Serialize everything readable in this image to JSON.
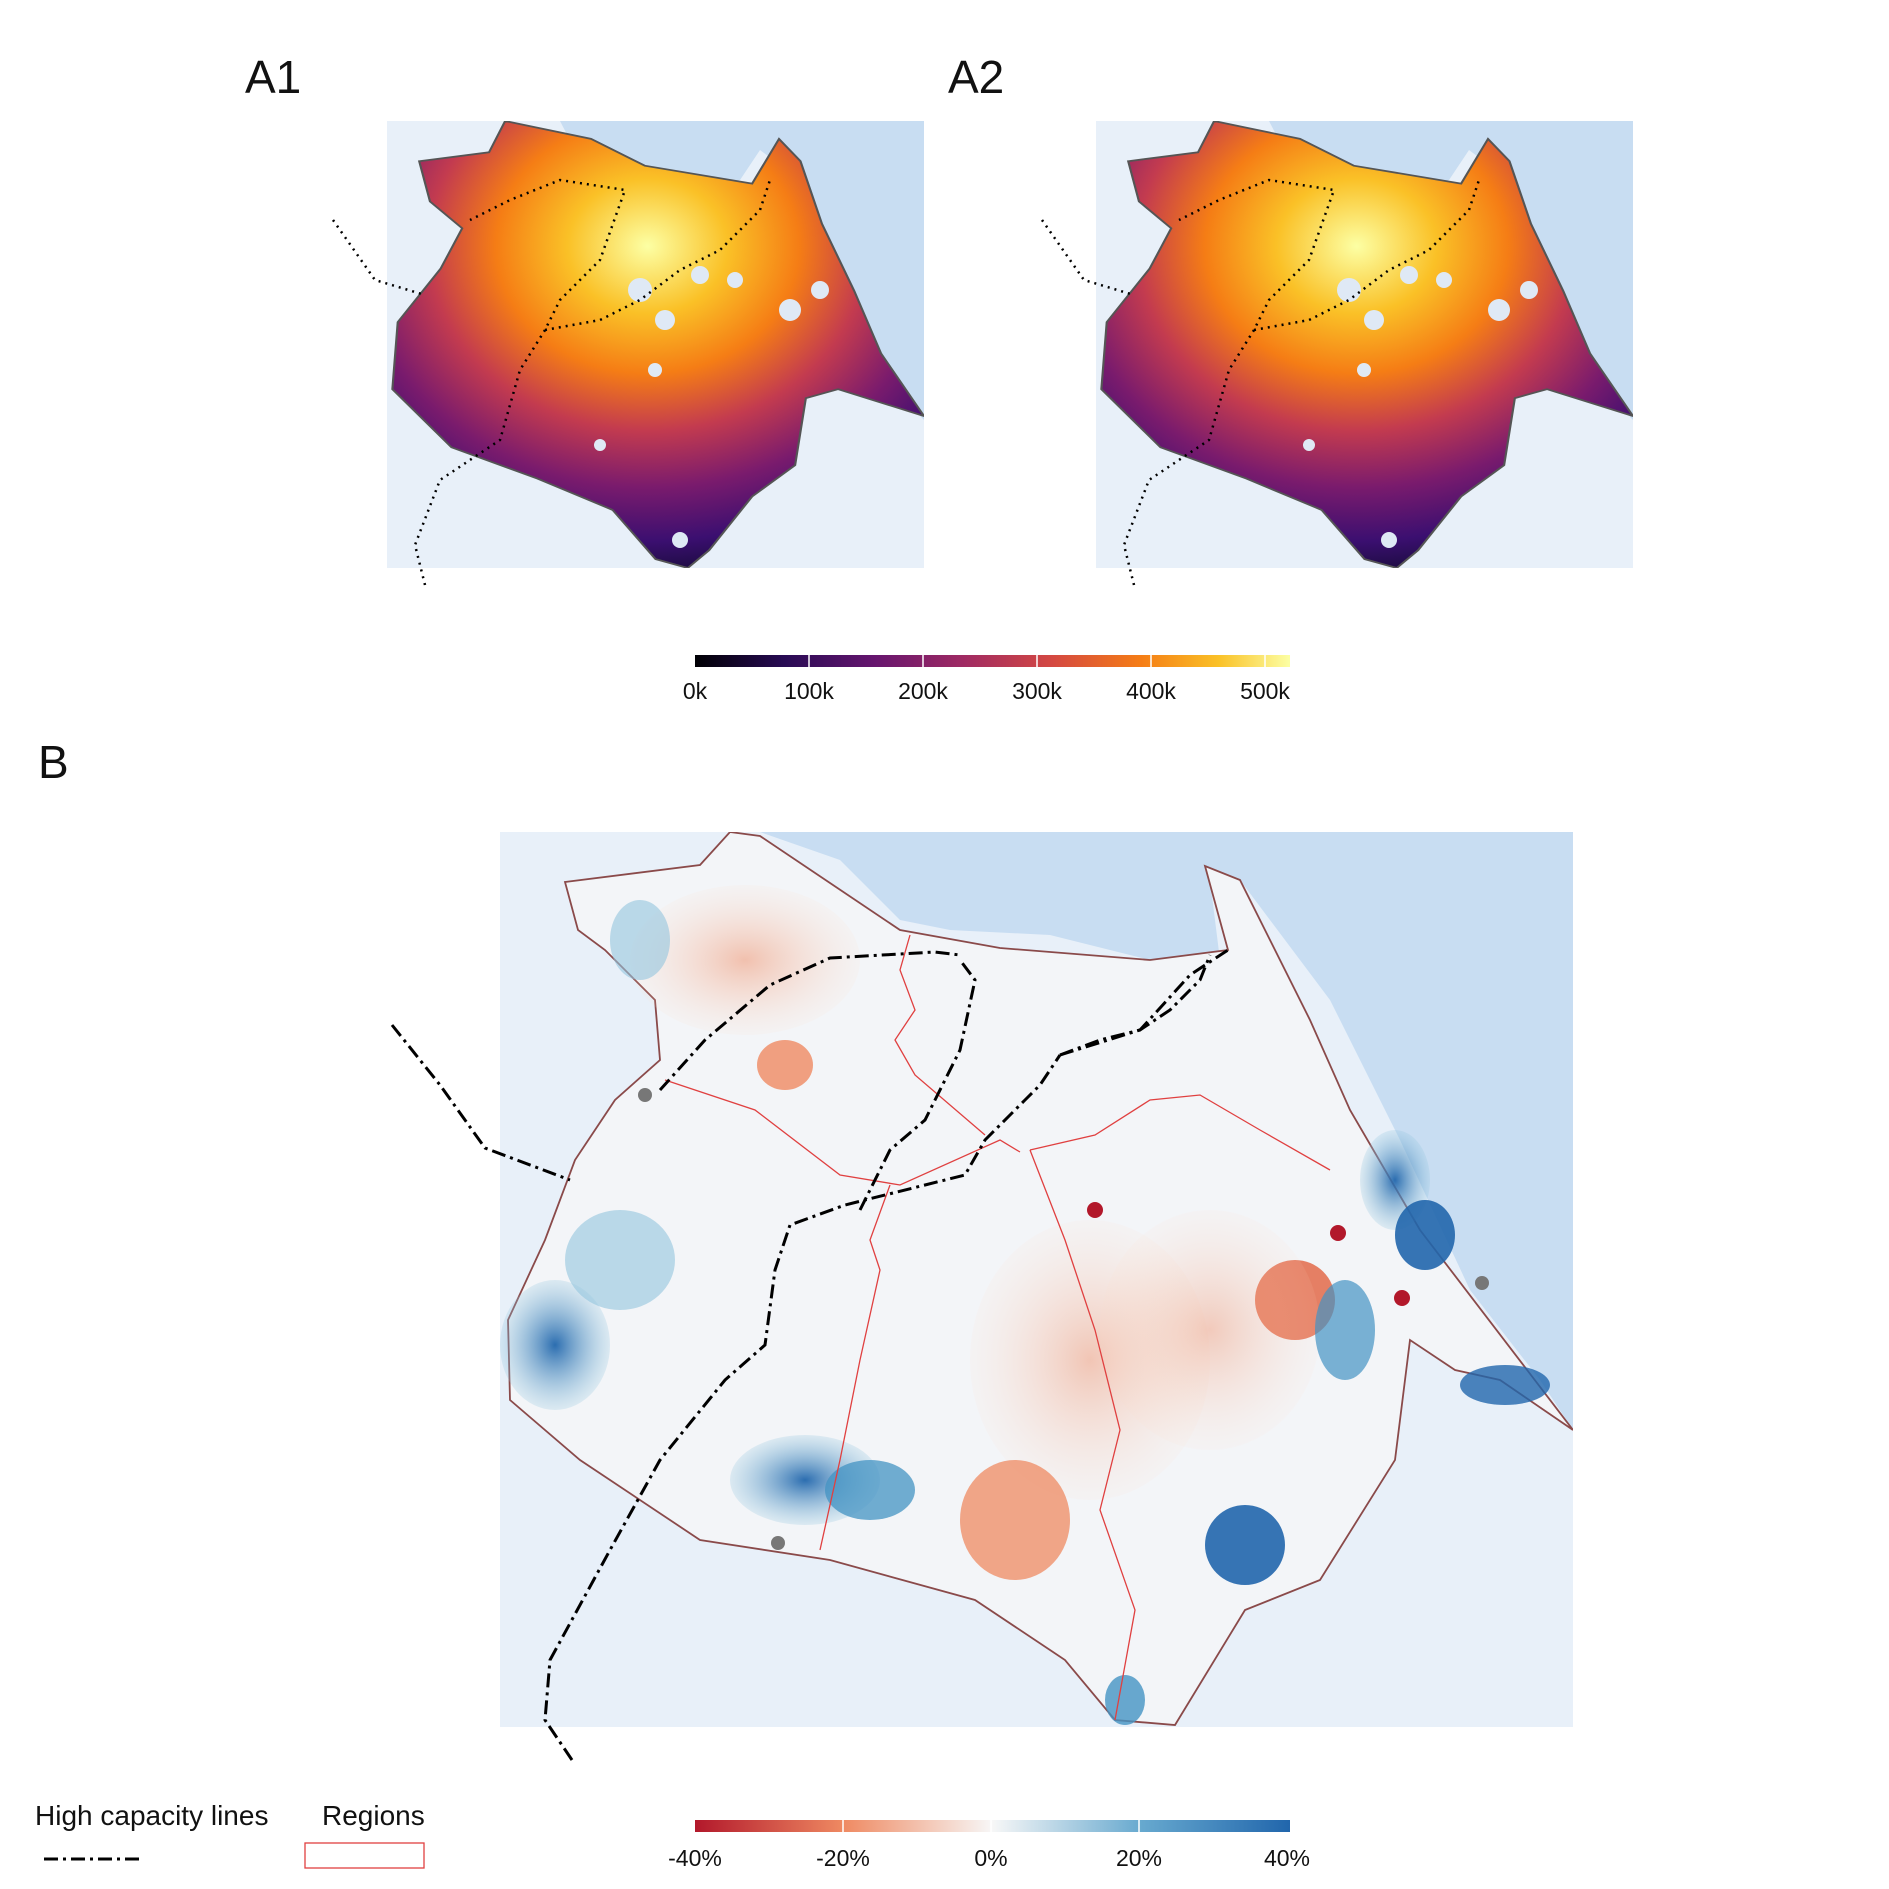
{
  "panels": {
    "a1": {
      "label": "A1"
    },
    "a2": {
      "label": "A2"
    },
    "b": {
      "label": "B"
    }
  },
  "colorbar_top": {
    "ticks": [
      "0k",
      "100k",
      "200k",
      "300k",
      "400k",
      "500k"
    ],
    "range": [
      0,
      520000
    ],
    "palette": "inferno"
  },
  "colorbar_bottom": {
    "ticks": [
      "-40%",
      "-20%",
      "0%",
      "20%",
      "40%"
    ],
    "range": [
      -45,
      45
    ],
    "palette": "red-blue diverging"
  },
  "legend": {
    "lines_title": "High capacity lines",
    "regions_title": "Regions"
  },
  "colors": {
    "water": "#c8ddf2",
    "land": "#e8f0f9",
    "boundary": "#8a4a4a",
    "region_line": "#e04040",
    "transit_line": "#000000"
  }
}
